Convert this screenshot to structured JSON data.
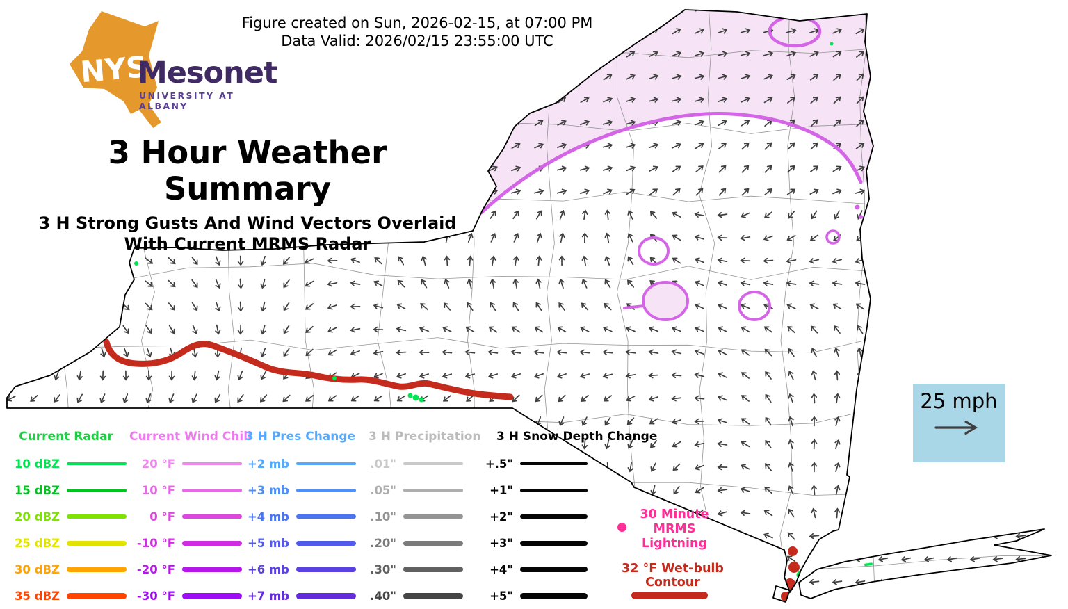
{
  "meta": {
    "created": "Figure created on Sun, 2026-02-15, at 07:00 PM",
    "valid": "Data Valid: 2026/02/15 23:55:00 UTC"
  },
  "logo": {
    "acronym": "NYS",
    "acronym_color": "#FFFFFF",
    "name": "Mesonet",
    "tagline": "UNIVERSITY AT ALBANY",
    "shape_color": "#E5992D",
    "name_color": "#3F2A63",
    "tagline_color": "#5B3F93"
  },
  "title": {
    "main": "3 Hour Weather Summary",
    "subtitle_line1": "3 H Strong Gusts And Wind Vectors Overlaid",
    "subtitle_line2": "With Current MRMS Radar"
  },
  "wind_scale": {
    "label": "25 mph",
    "box_color": "#A9D7E8",
    "arrow_color": "#3F3F3F"
  },
  "legend": {
    "columns": [
      {
        "id": "radar",
        "title": "Current Radar",
        "title_color": "#22CC44",
        "items": [
          {
            "label": "10 dBZ",
            "color": "#00E650"
          },
          {
            "label": "15 dBZ",
            "color": "#00C51E"
          },
          {
            "label": "20 dBZ",
            "color": "#7FE300"
          },
          {
            "label": "25 dBZ",
            "color": "#E3E300"
          },
          {
            "label": "30 dBZ",
            "color": "#FFA400"
          },
          {
            "label": "35 dBZ",
            "color": "#FF4400"
          }
        ]
      },
      {
        "id": "windchill",
        "title": "Current Wind Chill",
        "title_color": "#EE7BEE",
        "items": [
          {
            "label": "20 °F",
            "color": "#EE86EE"
          },
          {
            "label": "10 °F",
            "color": "#E669E6"
          },
          {
            "label": "0 °F",
            "color": "#DE47DE"
          },
          {
            "label": "-10 °F",
            "color": "#CE2BE2"
          },
          {
            "label": "-20 °F",
            "color": "#B517EA"
          },
          {
            "label": "-30 °F",
            "color": "#9D0DF2"
          }
        ]
      },
      {
        "id": "pres",
        "title": "3 H Pres Change",
        "title_color": "#55AAFF",
        "items": [
          {
            "label": "+2 mb",
            "color": "#55AAFF"
          },
          {
            "label": "+3 mb",
            "color": "#4E8FF8"
          },
          {
            "label": "+4 mb",
            "color": "#4B74F1"
          },
          {
            "label": "+5 mb",
            "color": "#515AEA"
          },
          {
            "label": "+6 mb",
            "color": "#5A42E2"
          },
          {
            "label": "+7 mb",
            "color": "#632CDA"
          }
        ]
      },
      {
        "id": "precip",
        "title": "3 H Precipitation",
        "title_color": "#BBBBBB",
        "items": [
          {
            "label": ".01\"",
            "color": "#C9C9C9"
          },
          {
            "label": ".05\"",
            "color": "#ADADAD"
          },
          {
            "label": ".10\"",
            "color": "#949494"
          },
          {
            "label": ".20\"",
            "color": "#7B7B7B"
          },
          {
            "label": ".30\"",
            "color": "#616161"
          },
          {
            "label": ".40\"",
            "color": "#454545"
          }
        ]
      },
      {
        "id": "snow",
        "title": "3 H Snow Depth Change",
        "title_color": "#000000",
        "items": [
          {
            "label": "+.5\"",
            "color": "#050505"
          },
          {
            "label": "+1\"",
            "color": "#050505"
          },
          {
            "label": "+2\"",
            "color": "#050505"
          },
          {
            "label": "+3\"",
            "color": "#050505"
          },
          {
            "label": "+4\"",
            "color": "#050505"
          },
          {
            "label": "+5\"",
            "color": "#050505"
          }
        ]
      }
    ],
    "lightning": {
      "line1": "30 Minute",
      "line2": "MRMS",
      "line3": "Lightning",
      "color": "#FF2D96"
    },
    "wetbulb": {
      "label": "32 °F Wet-bulb Contour",
      "color": "#C52B1C"
    }
  },
  "map": {
    "outline_color": "#000000",
    "county_line_color": "#8A8A8A",
    "wind_arrow_color": "#3F3F3F",
    "windchill_contour_color": "#D465E6",
    "windchill_fill_color": "#F6E4F6",
    "wetbulb_contour_color": "#C52B1C",
    "radar_echo_color": "#00E650"
  }
}
